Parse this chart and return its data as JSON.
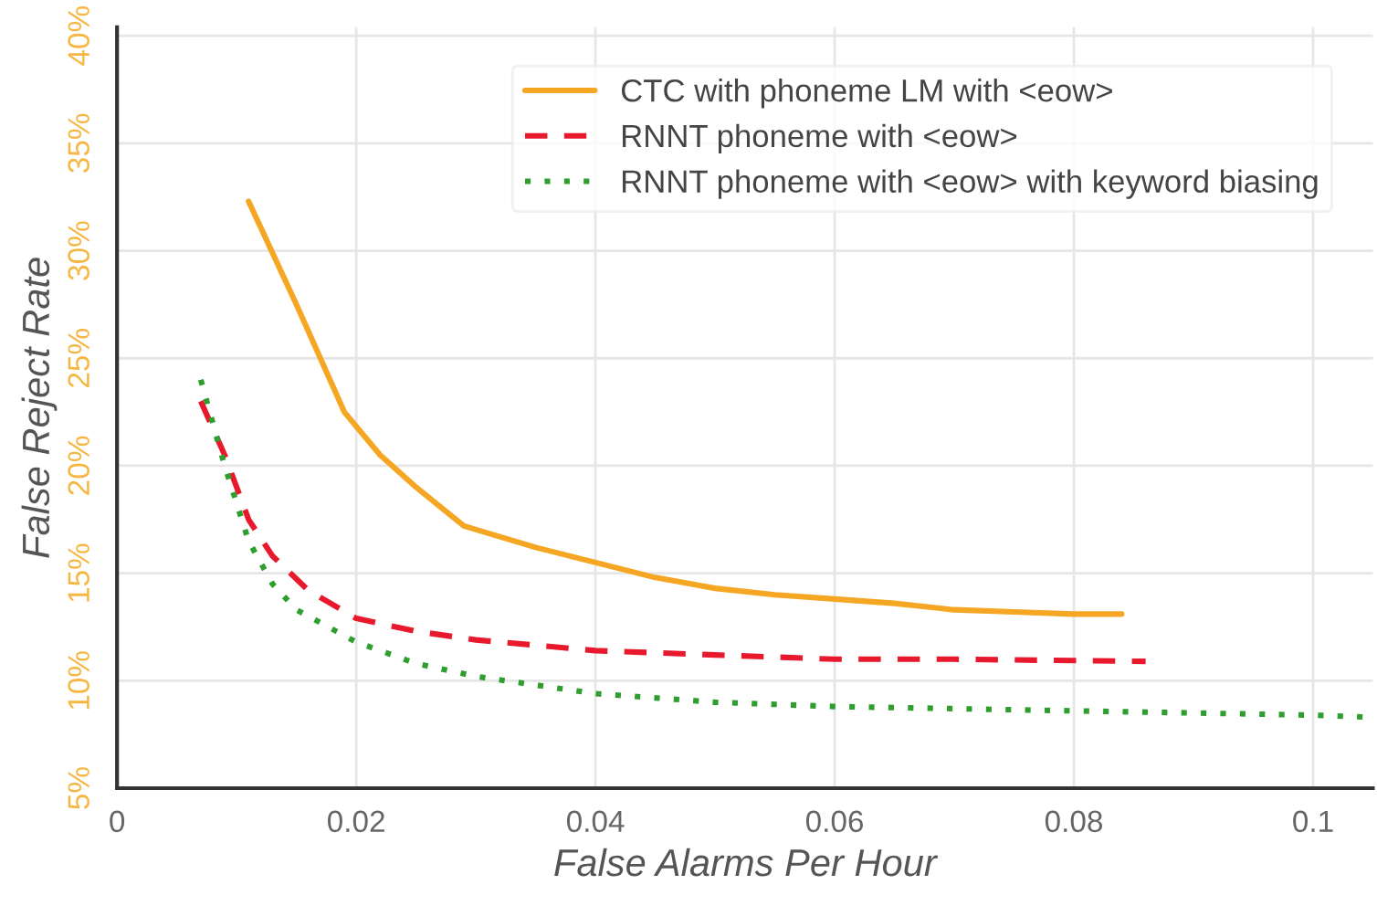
{
  "chart_data": {
    "type": "line",
    "xlabel": "False Alarms Per Hour",
    "ylabel": "False Reject Rate",
    "xlim": [
      0,
      0.105
    ],
    "ylim": [
      5,
      40.4
    ],
    "xticks": [
      0,
      0.02,
      0.04,
      0.06,
      0.08,
      0.1
    ],
    "yticks": [
      {
        "value": 5,
        "label": "5%"
      },
      {
        "value": 10,
        "label": "10%"
      },
      {
        "value": 15,
        "label": "15%"
      },
      {
        "value": 20,
        "label": "20%"
      },
      {
        "value": 25,
        "label": "25%"
      },
      {
        "value": 30,
        "label": "30%"
      },
      {
        "value": 35,
        "label": "35%"
      },
      {
        "value": 40,
        "label": "40%"
      }
    ],
    "grid": true,
    "legend": "top right",
    "marker": "none",
    "series": [
      {
        "name": "CTC with phoneme LM with <eow>",
        "color": "#f5a623",
        "line_style": "solid",
        "x": [
          0.011,
          0.015,
          0.019,
          0.022,
          0.025,
          0.029,
          0.035,
          0.04,
          0.045,
          0.05,
          0.055,
          0.06,
          0.065,
          0.07,
          0.075,
          0.08,
          0.084
        ],
        "values": [
          32.3,
          27.5,
          22.5,
          20.5,
          19.0,
          17.2,
          16.2,
          15.5,
          14.8,
          14.3,
          14.0,
          13.8,
          13.6,
          13.3,
          13.2,
          13.1,
          13.1
        ]
      },
      {
        "name": "RNNT phoneme with <eow>",
        "color": "#e8192c",
        "line_style": "dashed",
        "x": [
          0.007,
          0.009,
          0.011,
          0.013,
          0.016,
          0.02,
          0.025,
          0.03,
          0.04,
          0.05,
          0.06,
          0.07,
          0.086
        ],
        "values": [
          23.0,
          20.5,
          17.5,
          15.8,
          14.2,
          12.9,
          12.3,
          11.9,
          11.4,
          11.2,
          11.0,
          11.0,
          10.9
        ]
      },
      {
        "name": "RNNT phoneme with <eow> with keyword biasing",
        "color": "#2e9e2e",
        "line_style": "dotted",
        "x": [
          0.007,
          0.009,
          0.011,
          0.013,
          0.015,
          0.02,
          0.025,
          0.03,
          0.04,
          0.05,
          0.06,
          0.08,
          0.1,
          0.105
        ],
        "values": [
          24.0,
          20.0,
          16.5,
          14.5,
          13.3,
          11.8,
          10.8,
          10.2,
          9.4,
          9.0,
          8.8,
          8.6,
          8.4,
          8.3
        ]
      }
    ]
  }
}
